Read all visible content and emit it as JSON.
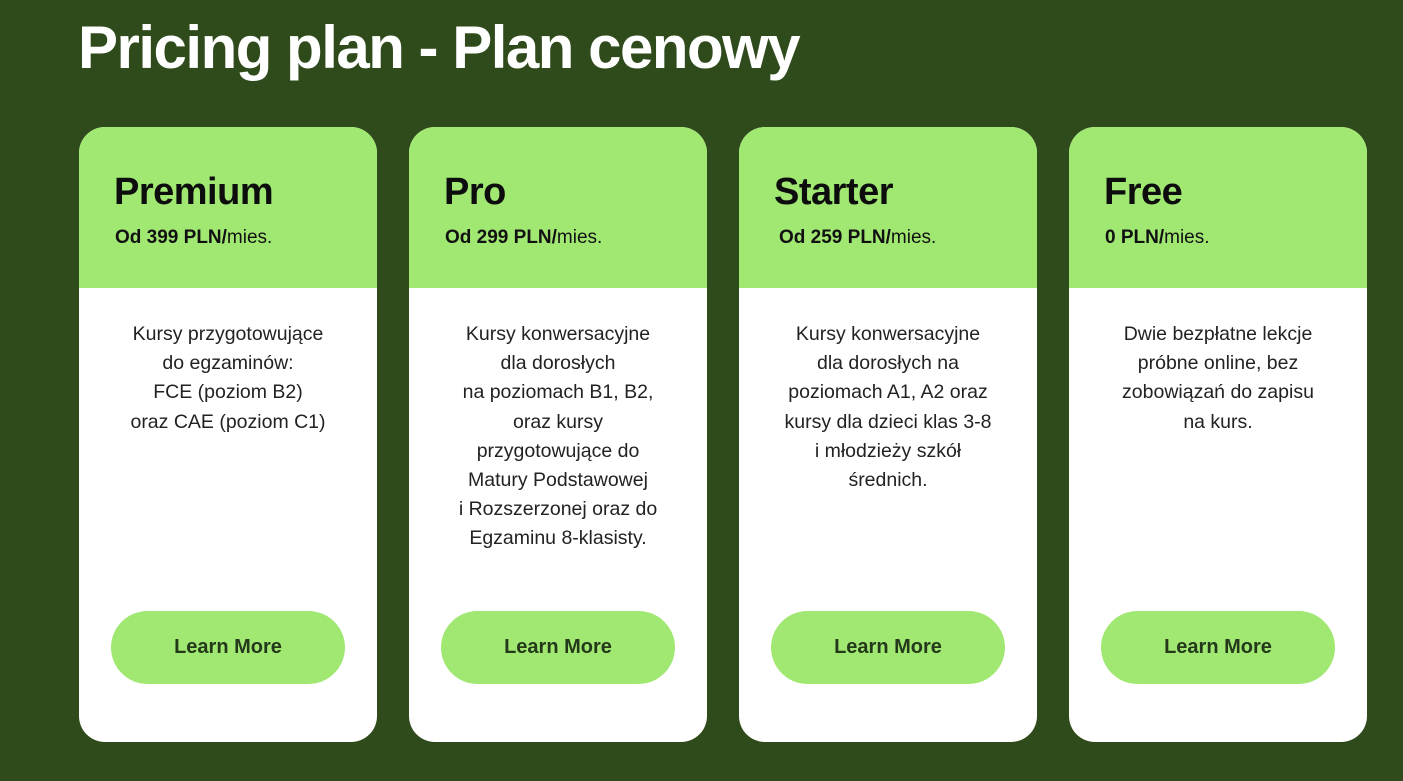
{
  "page": {
    "title": "Pricing plan - Plan cenowy"
  },
  "plans": [
    {
      "name": "Premium",
      "price_amount": "Od 399 PLN/",
      "price_unit": "mies.",
      "description_lines": [
        "Kursy przygotowujące",
        "do egzaminów:",
        "FCE (poziom B2)",
        "oraz CAE (poziom C1)"
      ],
      "button_label": "Learn More"
    },
    {
      "name": "Pro",
      "price_amount": "Od 299 PLN/",
      "price_unit": "mies.",
      "description_lines": [
        "Kursy konwersacyjne",
        "dla dorosłych",
        "na poziomach B1, B2,",
        "oraz kursy",
        "przygotowujące do",
        "Matury Podstawowej",
        "i Rozszerzonej oraz do",
        "Egzaminu 8-klasisty."
      ],
      "button_label": "Learn More"
    },
    {
      "name": "Starter",
      "price_amount": "Od 259 PLN/",
      "price_unit": "mies.",
      "description_lines": [
        "Kursy konwersacyjne",
        "dla dorosłych na",
        "poziomach A1, A2 oraz",
        "kursy dla dzieci klas 3-8",
        "i młodzieży szkół",
        "średnich."
      ],
      "button_label": "Learn More"
    },
    {
      "name": "Free",
      "price_amount": "0 PLN/",
      "price_unit": "mies.",
      "description_lines": [
        "Dwie bezpłatne lekcje",
        "próbne online, bez",
        "zobowiązań do zapisu",
        "na kurs."
      ],
      "button_label": "Learn More"
    }
  ],
  "colors": {
    "page_background": "#2f4a1b",
    "card_accent": "#a0e872",
    "card_background": "#ffffff",
    "title_text": "#ffffff",
    "button_text": "#24391a"
  }
}
